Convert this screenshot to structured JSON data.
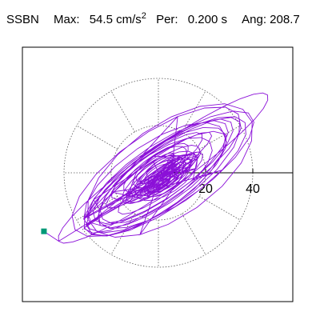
{
  "header": {
    "station": "SSBN",
    "max_label": "Max:",
    "max_value": "54.5",
    "max_unit": "cm/s",
    "max_unit_exp": "2",
    "per_label": "Per:",
    "per_value": "0.200 s",
    "ang_label": "Ang:",
    "ang_value": "208.7"
  },
  "chart_data": {
    "type": "polar-orbit",
    "title": "SSBN  Max: 54.5 cm/s2  Per: 0.200 s  Ang: 208.7",
    "max_amplitude": 54.5,
    "radial_ticks": [
      "20",
      "40"
    ],
    "radial_tick_values": [
      20,
      40
    ],
    "rings": [
      20,
      40
    ],
    "spokes_deg": [
      0,
      30,
      60,
      90,
      120,
      150,
      180,
      210,
      240,
      270,
      300,
      330
    ],
    "peak_point": {
      "x": -48.5,
      "y": -24.8
    },
    "orbit_direction_deg": 35,
    "orbit_color": "#8b10d8",
    "marker_color": "#009977",
    "grid": "dotted"
  }
}
